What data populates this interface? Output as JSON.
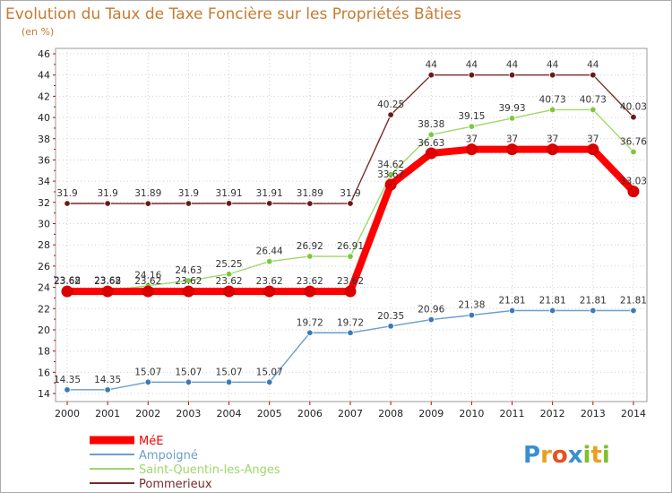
{
  "chart_data": {
    "type": "line",
    "title": "Evolution du Taux de Taxe Foncière sur les Propriétés Bâties",
    "subtitle": "(en %)",
    "xlabel": "",
    "ylabel": "",
    "ylim": [
      14,
      46
    ],
    "yticks": [
      "14",
      "16",
      "18",
      "20",
      "22",
      "24",
      "26",
      "28",
      "30",
      "32",
      "34",
      "36",
      "38",
      "40",
      "42",
      "44",
      "46"
    ],
    "categories": [
      "2000",
      "2001",
      "2002",
      "2003",
      "2004",
      "2005",
      "2006",
      "2007",
      "2008",
      "2009",
      "2010",
      "2011",
      "2012",
      "2013",
      "2014"
    ],
    "series": [
      {
        "name": "Pommerieux",
        "color": "#7a2a2a",
        "marker": "#6b1a1a",
        "values": [
          31.9,
          31.9,
          31.89,
          31.9,
          31.91,
          31.91,
          31.89,
          31.9,
          40.25,
          44,
          44,
          44,
          44,
          44,
          40.03
        ],
        "labels": [
          "31.9",
          "31.9",
          "31.89",
          "31.9",
          "31.91",
          "31.91",
          "31.89",
          "31.9",
          "40.25",
          "44",
          "44",
          "44",
          "44",
          "44",
          "40.03"
        ]
      },
      {
        "name": "Saint-Quentin-les-Anges",
        "color": "#9ed86a",
        "marker": "#7cc83a",
        "values": [
          23.68,
          23.68,
          24.16,
          24.63,
          25.25,
          26.44,
          26.92,
          26.91,
          34.62,
          38.38,
          39.15,
          39.93,
          40.73,
          40.73,
          36.76
        ],
        "labels": [
          "23.68",
          "23.68",
          "24.16",
          "24.63",
          "25.25",
          "26.44",
          "26.92",
          "26.91",
          "34.62",
          "38.38",
          "39.15",
          "39.93",
          "40.73",
          "40.73",
          "36.76"
        ]
      },
      {
        "name": "Ampoigné",
        "color": "#6a9ecc",
        "marker": "#3a7ab8",
        "values": [
          14.35,
          14.35,
          15.07,
          15.07,
          15.07,
          15.07,
          19.72,
          19.72,
          20.35,
          20.96,
          21.38,
          21.81,
          21.81,
          21.81,
          21.81
        ],
        "labels": [
          "14.35",
          "14.35",
          "15.07",
          "15.07",
          "15.07",
          "15.07",
          "19.72",
          "19.72",
          "20.35",
          "20.96",
          "21.38",
          "21.81",
          "21.81",
          "21.81",
          "21.81"
        ]
      },
      {
        "name": "MéE",
        "color": "#ff0000",
        "marker": "#dd0000",
        "values": [
          23.62,
          23.62,
          23.62,
          23.62,
          23.62,
          23.62,
          23.62,
          23.62,
          33.67,
          36.63,
          37,
          37,
          37,
          37,
          33.03
        ],
        "labels": [
          "23.62",
          "23.62",
          "23.62",
          "23.62",
          "23.62",
          "23.62",
          "23.62",
          "23.62",
          "33.67",
          "36.63",
          "37",
          "37",
          "37",
          "37",
          "33.03"
        ]
      }
    ],
    "legend": {
      "position": "bottom-left",
      "items": [
        {
          "name": "MéE",
          "color": "#ff0000"
        },
        {
          "name": "Ampoigné",
          "color": "#6a9ecc"
        },
        {
          "name": "Saint-Quentin-les-Anges",
          "color": "#9ed86a"
        },
        {
          "name": "Pommerieux",
          "color": "#7a2a2a"
        }
      ]
    }
  },
  "brand": {
    "letters": [
      "P",
      "r",
      "o",
      "x",
      "i",
      "t",
      "i"
    ],
    "colors": [
      "#3a8fd0",
      "#e8a020",
      "#e85020",
      "#3a8fd0",
      "#80c030",
      "#e8a020",
      "#80c030"
    ]
  }
}
